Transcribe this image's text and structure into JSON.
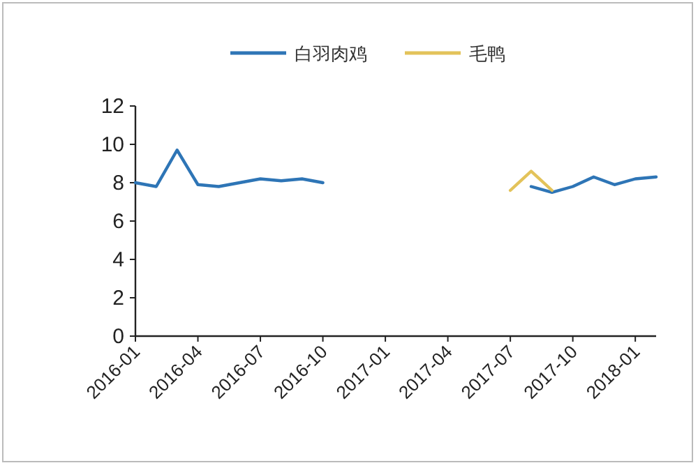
{
  "chart_data": {
    "type": "line",
    "x": [
      "2016-01",
      "2016-02",
      "2016-03",
      "2016-04",
      "2016-05",
      "2016-06",
      "2016-07",
      "2016-08",
      "2016-09",
      "2016-10",
      "2016-11",
      "2016-12",
      "2017-01",
      "2017-02",
      "2017-03",
      "2017-04",
      "2017-05",
      "2017-06",
      "2017-07",
      "2017-08",
      "2017-09",
      "2017-10",
      "2017-11",
      "2017-12",
      "2018-01",
      "2018-02"
    ],
    "series": [
      {
        "name": "白羽肉鸡",
        "color": "#2e75b6",
        "values": [
          8.0,
          7.8,
          9.7,
          7.9,
          7.8,
          8.0,
          8.2,
          8.1,
          8.2,
          8.0,
          null,
          null,
          null,
          null,
          null,
          null,
          null,
          null,
          null,
          7.8,
          7.5,
          7.8,
          8.3,
          7.9,
          8.2,
          8.3
        ]
      },
      {
        "name": "毛鸭",
        "color": "#e3c35a",
        "values": [
          null,
          null,
          null,
          null,
          null,
          null,
          null,
          null,
          null,
          null,
          null,
          null,
          null,
          null,
          null,
          null,
          null,
          null,
          7.6,
          8.6,
          7.6,
          null,
          null,
          null,
          null,
          null
        ]
      }
    ],
    "ylim": [
      0,
      12
    ],
    "yticks": [
      0,
      2,
      4,
      6,
      8,
      10,
      12
    ],
    "xlim": [
      "2016-01",
      "2018-02"
    ],
    "xticks": [
      {
        "value": "2016-01",
        "label": "2016-01"
      },
      {
        "value": "2016-04",
        "label": "2016-04"
      },
      {
        "value": "2016-07",
        "label": "2016-07"
      },
      {
        "value": "2016-10",
        "label": "2016-10"
      },
      {
        "value": "2017-01",
        "label": "2017-01"
      },
      {
        "value": "2017-04",
        "label": "2017-04"
      },
      {
        "value": "2017-07",
        "label": "2017-07"
      },
      {
        "value": "2017-10",
        "label": "2017-10"
      },
      {
        "value": "2018-01",
        "label": "2018-01"
      }
    ],
    "legend": "top",
    "grid": false,
    "marker": "none",
    "line_style": "solid"
  }
}
